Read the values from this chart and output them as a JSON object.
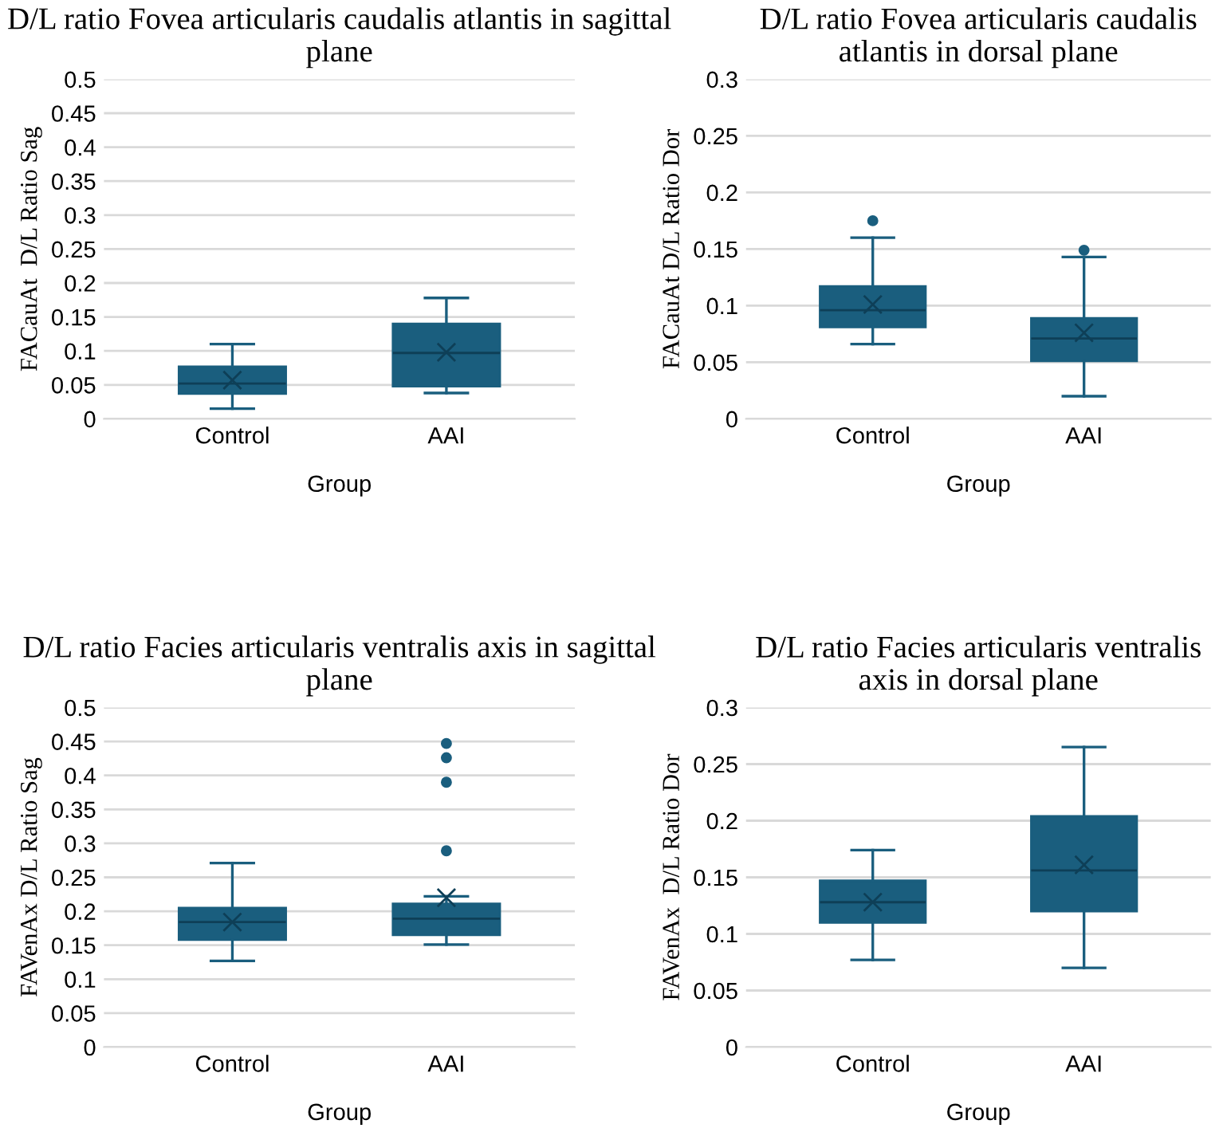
{
  "chart_data": [
    {
      "type": "box",
      "title": "D/L ratio Fovea articularis caudalis atlantis in sagittal plane",
      "xlabel": "Group",
      "ylabel": "FACauAt  D/L Ratio Sag",
      "categories": [
        "Control",
        "AAI"
      ],
      "color": "#1a5e7e",
      "ylim": [
        0,
        0.5
      ],
      "yticks": [
        0,
        0.05,
        0.1,
        0.15,
        0.2,
        0.25,
        0.3,
        0.35,
        0.4,
        0.45,
        0.5
      ],
      "grid": "y",
      "marker": "cross",
      "boxes": [
        {
          "low": 0.015,
          "q1": 0.037,
          "median": 0.052,
          "q3": 0.077,
          "high": 0.11,
          "mean": 0.057
        },
        {
          "low": 0.038,
          "q1": 0.048,
          "median": 0.097,
          "q3": 0.14,
          "high": 0.178,
          "mean": 0.098
        }
      ]
    },
    {
      "type": "box",
      "title": "D/L ratio Fovea articularis caudalis atlantis in dorsal plane",
      "xlabel": "Group",
      "ylabel": "FACauAt D/L Ratio Dor",
      "categories": [
        "Control",
        "AAI"
      ],
      "color": "#1a5e7e",
      "ylim": [
        0,
        0.3
      ],
      "yticks": [
        0,
        0.05,
        0.1,
        0.15,
        0.2,
        0.25,
        0.3
      ],
      "grid": "y",
      "marker": "cross",
      "boxes": [
        {
          "low": 0.066,
          "q1": 0.081,
          "median": 0.096,
          "q3": 0.117,
          "high": 0.16,
          "mean": 0.101,
          "outliers": [
            0.175
          ]
        },
        {
          "low": 0.02,
          "q1": 0.051,
          "median": 0.071,
          "q3": 0.089,
          "high": 0.143,
          "mean": 0.076,
          "outliers": [
            0.149
          ]
        }
      ]
    },
    {
      "type": "box",
      "title": "D/L ratio Facies articularis ventralis axis in sagittal plane",
      "xlabel": "Group",
      "ylabel": "FAVenAx D/L Ratio Sag",
      "categories": [
        "Control",
        "AAI"
      ],
      "color": "#1a5e7e",
      "ylim": [
        0,
        0.5
      ],
      "yticks": [
        0,
        0.05,
        0.1,
        0.15,
        0.2,
        0.25,
        0.3,
        0.35,
        0.4,
        0.45,
        0.5
      ],
      "grid": "y",
      "marker": "cross",
      "boxes": [
        {
          "low": 0.127,
          "q1": 0.158,
          "median": 0.184,
          "q3": 0.205,
          "high": 0.271,
          "mean": 0.184
        },
        {
          "low": 0.151,
          "q1": 0.165,
          "median": 0.189,
          "q3": 0.211,
          "high": 0.222,
          "mean": 0.22,
          "outliers": [
            0.289,
            0.39,
            0.426,
            0.447
          ]
        }
      ]
    },
    {
      "type": "box",
      "title": "D/L ratio Facies articularis ventralis axis in dorsal plane",
      "xlabel": "Group",
      "ylabel": "FAVenAx  D/L Ratio Dor",
      "categories": [
        "Control",
        "AAI"
      ],
      "color": "#1a5e7e",
      "ylim": [
        0,
        0.3
      ],
      "yticks": [
        0,
        0.05,
        0.1,
        0.15,
        0.2,
        0.25,
        0.3
      ],
      "grid": "y",
      "marker": "cross",
      "boxes": [
        {
          "low": 0.077,
          "q1": 0.11,
          "median": 0.128,
          "q3": 0.147,
          "high": 0.174,
          "mean": 0.128
        },
        {
          "low": 0.07,
          "q1": 0.12,
          "median": 0.156,
          "q3": 0.204,
          "high": 0.265,
          "mean": 0.161
        }
      ]
    }
  ]
}
